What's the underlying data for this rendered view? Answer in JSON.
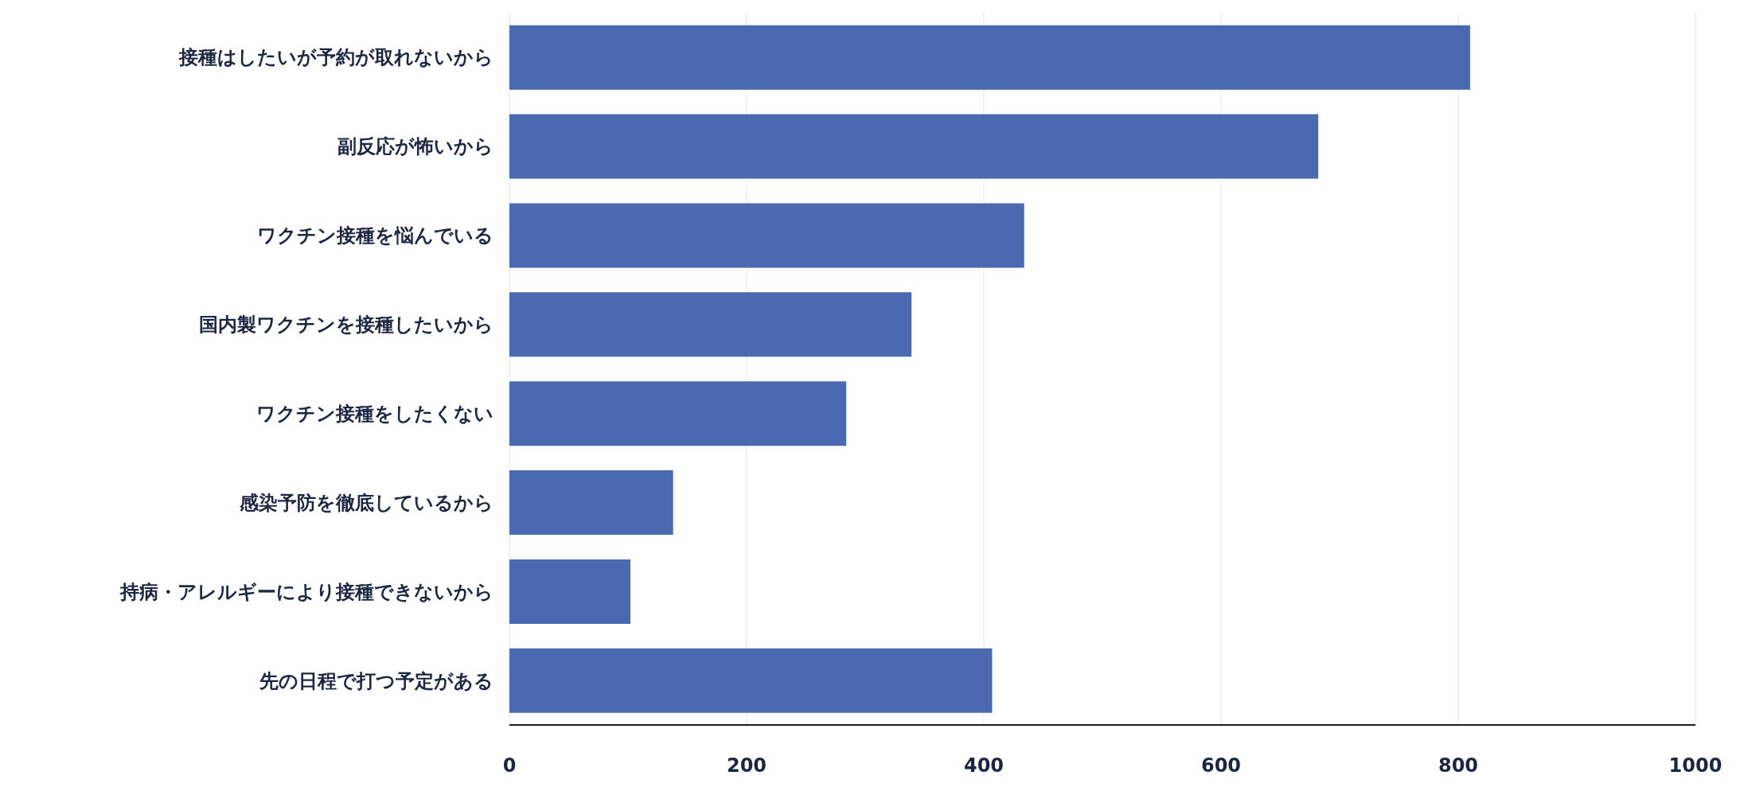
{
  "chart_data": {
    "type": "bar",
    "orientation": "horizontal",
    "categories": [
      "接種はしたいが予約が取れないから",
      "副反応が怖いから",
      "ワクチン接種を悩んでいる",
      "国内製ワクチンを接種したいから",
      "ワクチン接種をしたくない",
      "感染予防を徹底しているから",
      "持病・アレルギーにより接種できないから",
      "先の日程で打つ予定がある"
    ],
    "values": [
      810,
      682,
      434,
      339,
      284,
      138,
      102,
      407
    ],
    "color": "#4a69b0",
    "xlim": [
      0,
      1000
    ],
    "xticks": [
      0,
      200,
      400,
      600,
      800,
      1000
    ],
    "grid": "x",
    "legend": false
  }
}
